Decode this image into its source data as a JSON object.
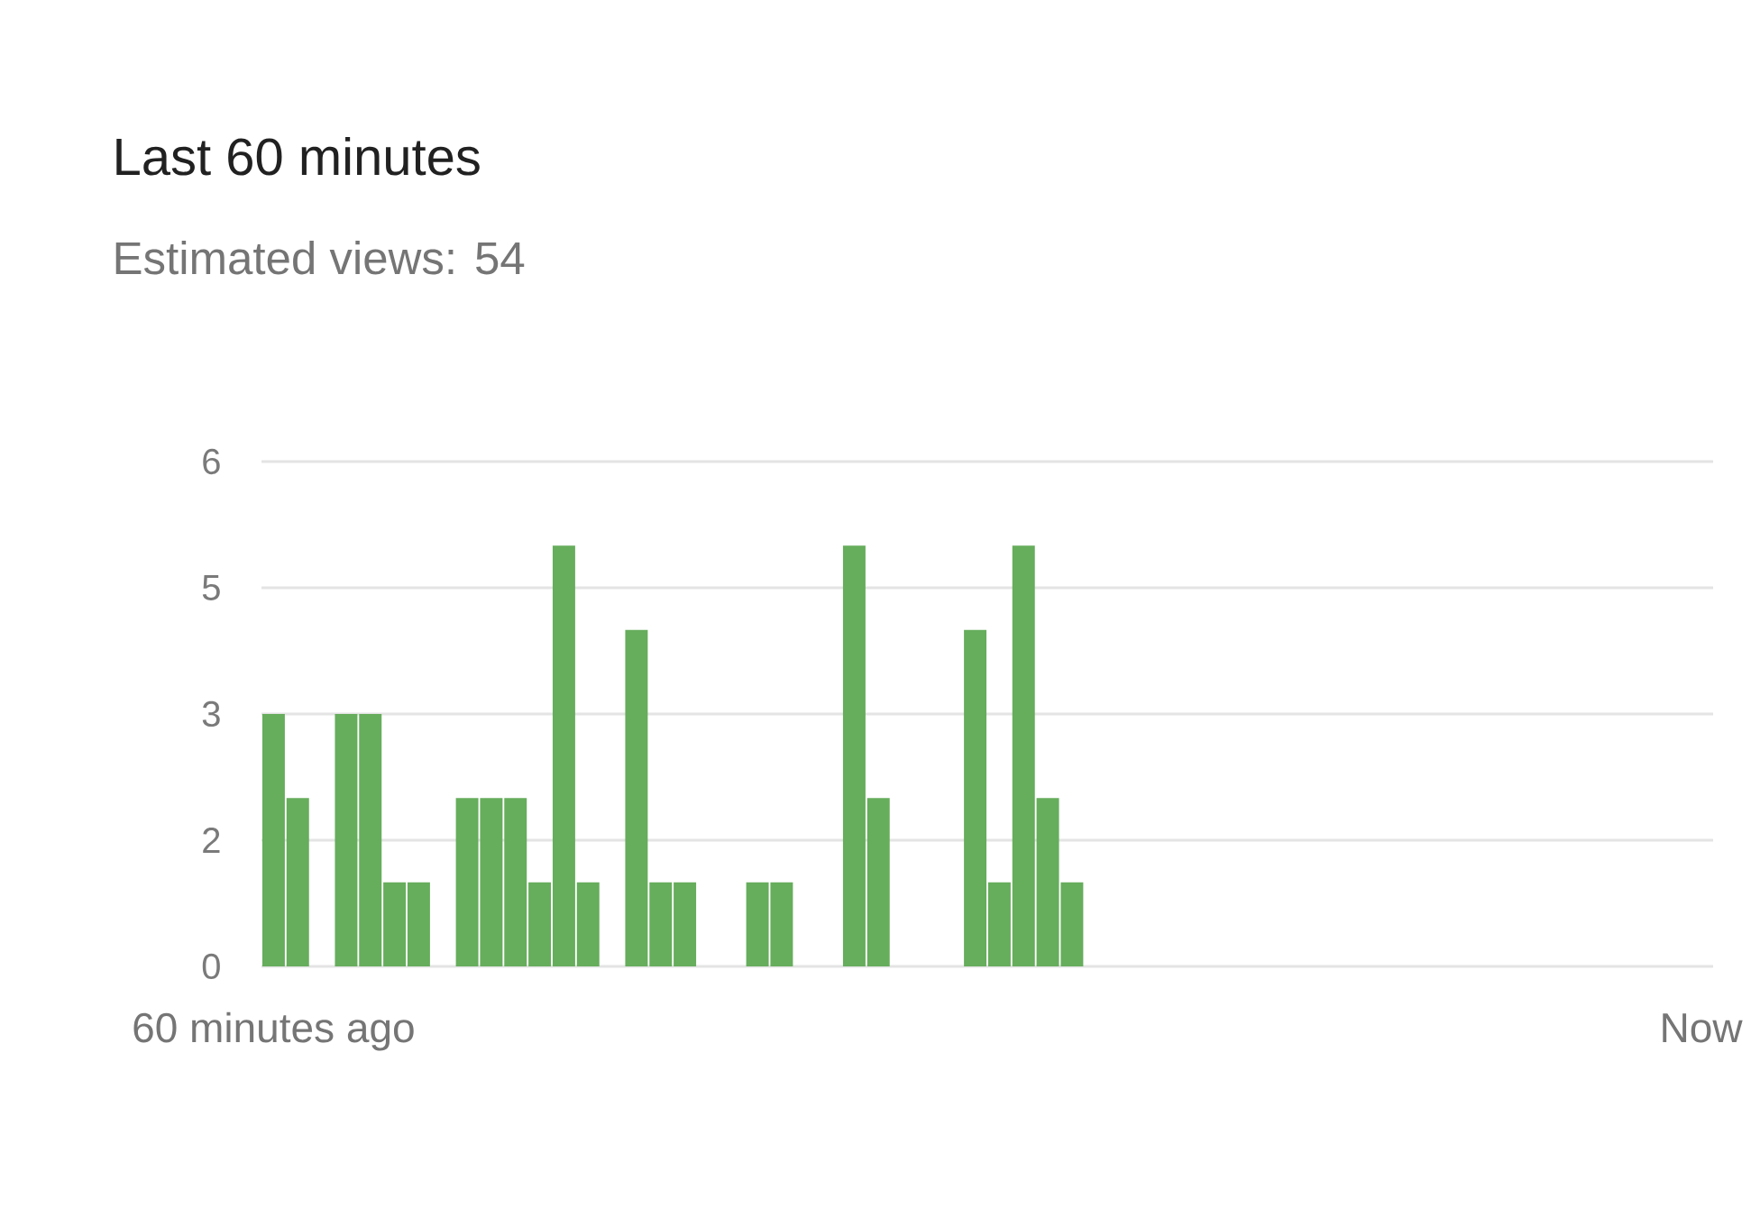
{
  "chart_data": {
    "type": "bar",
    "title": "Last 60 minutes",
    "subtitle": "Estimated views: 54",
    "categories": [
      "60 minutes ago",
      null,
      null,
      null,
      null,
      null,
      null,
      null,
      null,
      null,
      null,
      null,
      null,
      null,
      null,
      null,
      null,
      null,
      null,
      null,
      null,
      null,
      null,
      null,
      null,
      null,
      null,
      null,
      null,
      null,
      null,
      null,
      null,
      null,
      null,
      null,
      null,
      null,
      null,
      null,
      null,
      null,
      null,
      null,
      null,
      null,
      null,
      null,
      null,
      null,
      null,
      null,
      null,
      null,
      null,
      null,
      null,
      null,
      null,
      "Now"
    ],
    "values": [
      3,
      2,
      0,
      3,
      3,
      1,
      1,
      0,
      2,
      2,
      2,
      1,
      5,
      1,
      0,
      4,
      1,
      1,
      0,
      0,
      1,
      1,
      0,
      0,
      5,
      2,
      0,
      0,
      0,
      4,
      1,
      5,
      2,
      1,
      0,
      0,
      0,
      0,
      0,
      0,
      0,
      0,
      0,
      0,
      0,
      0,
      0,
      0,
      0,
      0,
      0,
      0,
      0,
      0,
      0,
      0,
      0,
      0,
      0,
      0
    ],
    "color": "#66ad5c",
    "ylim": [
      0,
      6
    ],
    "yticks": [
      0,
      {
        "value": 1.5,
        "label": "2"
      },
      3,
      {
        "value": 4.5,
        "label": "5"
      },
      6
    ],
    "grid": "y"
  }
}
